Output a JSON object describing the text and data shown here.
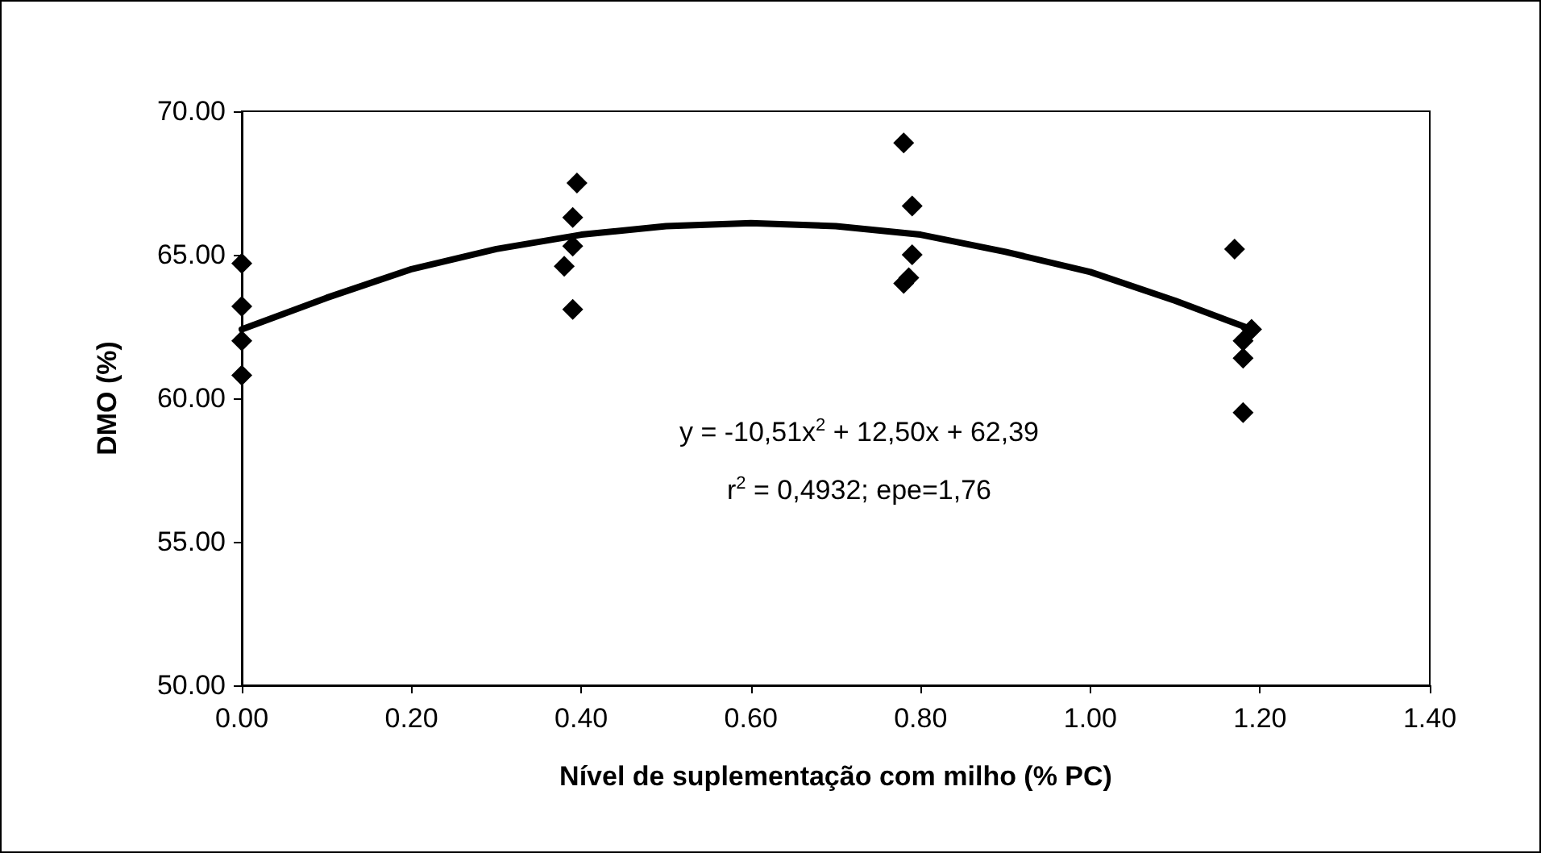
{
  "chart_data": {
    "type": "scatter",
    "xlabel": "Nível de suplementação com milho (% PC)",
    "ylabel": "DMO (%)",
    "xlim": [
      0,
      1.4
    ],
    "ylim": [
      50,
      70
    ],
    "xticks": [
      {
        "value": 0,
        "label": "0.00"
      },
      {
        "value": 0.2,
        "label": "0.20"
      },
      {
        "value": 0.4,
        "label": "0.40"
      },
      {
        "value": 0.6,
        "label": "0.60"
      },
      {
        "value": 0.8,
        "label": "0.80"
      },
      {
        "value": 1.0,
        "label": "1.00"
      },
      {
        "value": 1.2,
        "label": "1.20"
      },
      {
        "value": 1.4,
        "label": "1.40"
      }
    ],
    "yticks": [
      {
        "value": 50,
        "label": "50.00"
      },
      {
        "value": 55,
        "label": "55.00"
      },
      {
        "value": 60,
        "label": "60.00"
      },
      {
        "value": 65,
        "label": "65.00"
      },
      {
        "value": 70,
        "label": "70.00"
      }
    ],
    "grid": false,
    "marker": "diamond",
    "annotations": [
      "y = -10,51x$^{2}$ + 12,50x + 62,39",
      "r$^{2}$ = 0,4932; epe=1,76"
    ],
    "series": [
      {
        "color": "#000000",
        "x": [
          0,
          0,
          0,
          0,
          0.395,
          0.39,
          0.39,
          0.38,
          0.39,
          0.78,
          0.79,
          0.79,
          0.786,
          0.78,
          1.17,
          1.19,
          1.18,
          1.18,
          1.18
        ],
        "values": [
          64.7,
          63.2,
          62.0,
          60.8,
          67.5,
          66.3,
          65.3,
          64.6,
          63.1,
          68.9,
          66.7,
          65.0,
          64.2,
          64.0,
          65.2,
          62.4,
          62.0,
          61.4,
          59.5
        ]
      },
      {
        "type": "line",
        "color": "#000000",
        "marker": "none",
        "x": [
          0,
          0.1,
          0.2,
          0.3,
          0.4,
          0.5,
          0.6,
          0.7,
          0.8,
          0.9,
          1.0,
          1.1,
          1.19
        ],
        "values": [
          62.4,
          63.5,
          64.5,
          65.2,
          65.7,
          66.0,
          66.1,
          66.0,
          65.7,
          65.1,
          64.4,
          63.4,
          62.4
        ]
      }
    ]
  }
}
